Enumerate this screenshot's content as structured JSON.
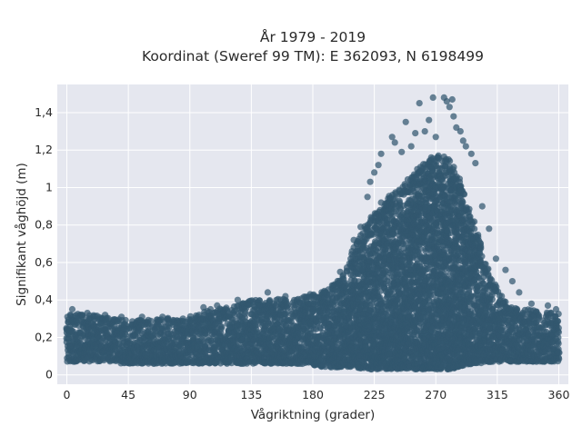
{
  "chart_data": {
    "type": "scatter",
    "title": "År 1979 - 2019",
    "subtitle": "Koordinat (Sweref 99 TM): E 362093, N 6198499",
    "xlabel": "Vågriktning (grader)",
    "ylabel": "Signifikant våghöjd (m)",
    "xlim": [
      -7,
      367
    ],
    "ylim": [
      -0.05,
      1.55
    ],
    "xticks": [
      0,
      45,
      90,
      135,
      180,
      225,
      270,
      315,
      360
    ],
    "yticks": [
      0,
      0.2,
      0.4,
      0.6,
      0.8,
      1.0,
      1.2,
      1.4
    ],
    "ytick_labels": [
      "0",
      "0,2",
      "0,4",
      "0,6",
      "0,8",
      "1",
      "1,2",
      "1,4"
    ],
    "grid": true,
    "legend": "none",
    "marker_color": "#32586f",
    "background_color": "#e5e7ef",
    "envelope": {
      "x": [
        0,
        20,
        45,
        60,
        90,
        100,
        120,
        135,
        150,
        165,
        180,
        190,
        200,
        210,
        220,
        230,
        240,
        250,
        260,
        270,
        275,
        280,
        285,
        290,
        300,
        310,
        320,
        330,
        345,
        360
      ],
      "y_min": [
        0.07,
        0.07,
        0.06,
        0.06,
        0.06,
        0.06,
        0.06,
        0.06,
        0.06,
        0.06,
        0.05,
        0.04,
        0.04,
        0.04,
        0.03,
        0.03,
        0.03,
        0.03,
        0.03,
        0.03,
        0.03,
        0.03,
        0.04,
        0.05,
        0.06,
        0.07,
        0.07,
        0.07,
        0.07,
        0.07
      ],
      "y_max": [
        0.33,
        0.32,
        0.29,
        0.3,
        0.31,
        0.35,
        0.36,
        0.4,
        0.41,
        0.4,
        0.43,
        0.45,
        0.52,
        0.68,
        0.82,
        0.93,
        0.98,
        1.05,
        1.12,
        1.18,
        1.2,
        1.15,
        1.1,
        1.0,
        0.78,
        0.52,
        0.4,
        0.36,
        0.34,
        0.33
      ]
    },
    "outliers": [
      {
        "x": 4,
        "y": 0.35
      },
      {
        "x": 15,
        "y": 0.33
      },
      {
        "x": 28,
        "y": 0.32
      },
      {
        "x": 40,
        "y": 0.31
      },
      {
        "x": 55,
        "y": 0.31
      },
      {
        "x": 70,
        "y": 0.31
      },
      {
        "x": 85,
        "y": 0.3
      },
      {
        "x": 100,
        "y": 0.36
      },
      {
        "x": 110,
        "y": 0.37
      },
      {
        "x": 125,
        "y": 0.4
      },
      {
        "x": 147,
        "y": 0.44
      },
      {
        "x": 160,
        "y": 0.42
      },
      {
        "x": 178,
        "y": 0.43
      },
      {
        "x": 188,
        "y": 0.44
      },
      {
        "x": 200,
        "y": 0.55
      },
      {
        "x": 210,
        "y": 0.72
      },
      {
        "x": 215,
        "y": 0.79
      },
      {
        "x": 220,
        "y": 0.95
      },
      {
        "x": 222,
        "y": 1.03
      },
      {
        "x": 225,
        "y": 1.08
      },
      {
        "x": 228,
        "y": 1.12
      },
      {
        "x": 230,
        "y": 1.18
      },
      {
        "x": 238,
        "y": 1.27
      },
      {
        "x": 240,
        "y": 1.24
      },
      {
        "x": 245,
        "y": 1.19
      },
      {
        "x": 248,
        "y": 1.35
      },
      {
        "x": 252,
        "y": 1.22
      },
      {
        "x": 255,
        "y": 1.29
      },
      {
        "x": 258,
        "y": 1.45
      },
      {
        "x": 262,
        "y": 1.3
      },
      {
        "x": 265,
        "y": 1.36
      },
      {
        "x": 268,
        "y": 1.48
      },
      {
        "x": 270,
        "y": 1.27
      },
      {
        "x": 276,
        "y": 1.48
      },
      {
        "x": 278,
        "y": 1.46
      },
      {
        "x": 280,
        "y": 1.43
      },
      {
        "x": 282,
        "y": 1.47
      },
      {
        "x": 283,
        "y": 1.38
      },
      {
        "x": 285,
        "y": 1.32
      },
      {
        "x": 288,
        "y": 1.3
      },
      {
        "x": 290,
        "y": 1.25
      },
      {
        "x": 292,
        "y": 1.22
      },
      {
        "x": 296,
        "y": 1.18
      },
      {
        "x": 299,
        "y": 1.13
      },
      {
        "x": 304,
        "y": 0.9
      },
      {
        "x": 309,
        "y": 0.78
      },
      {
        "x": 314,
        "y": 0.62
      },
      {
        "x": 321,
        "y": 0.56
      },
      {
        "x": 326,
        "y": 0.5
      },
      {
        "x": 331,
        "y": 0.44
      },
      {
        "x": 340,
        "y": 0.38
      },
      {
        "x": 352,
        "y": 0.37
      },
      {
        "x": 358,
        "y": 0.35
      }
    ]
  }
}
